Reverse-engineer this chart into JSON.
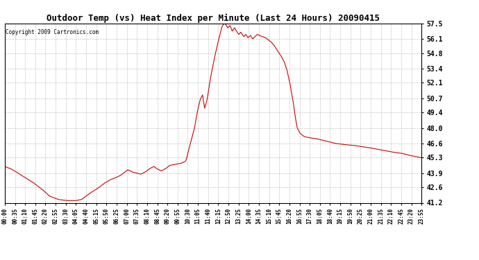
{
  "title": "Outdoor Temp (vs) Heat Index per Minute (Last 24 Hours) 20090415",
  "copyright": "Copyright 2009 Cartronics.com",
  "line_color": "#cc0000",
  "background_color": "#ffffff",
  "grid_color": "#aaaaaa",
  "y_min": 41.2,
  "y_max": 57.5,
  "y_ticks": [
    41.2,
    42.6,
    43.9,
    45.3,
    46.6,
    48.0,
    49.4,
    50.7,
    52.1,
    53.4,
    54.8,
    56.1,
    57.5
  ],
  "x_labels": [
    "00:00",
    "00:35",
    "01:10",
    "01:45",
    "02:20",
    "02:55",
    "03:30",
    "04:05",
    "04:40",
    "05:15",
    "05:50",
    "06:25",
    "07:00",
    "07:35",
    "08:10",
    "08:45",
    "09:20",
    "09:55",
    "10:30",
    "11:05",
    "11:40",
    "12:15",
    "12:50",
    "13:25",
    "14:00",
    "14:35",
    "15:10",
    "15:45",
    "16:20",
    "16:55",
    "17:30",
    "18:05",
    "18:40",
    "19:15",
    "19:50",
    "20:25",
    "21:00",
    "21:35",
    "22:10",
    "22:45",
    "23:20",
    "23:55"
  ],
  "figwidth": 6.9,
  "figheight": 3.75,
  "dpi": 100
}
